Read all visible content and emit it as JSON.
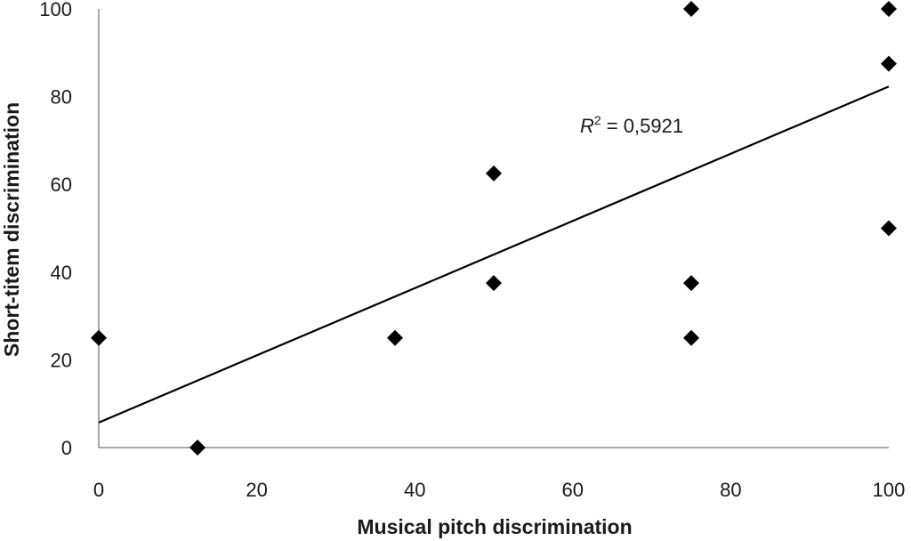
{
  "chart_data": {
    "type": "scatter",
    "title": "",
    "xlabel": "Musical pitch discrimination",
    "ylabel": "Short-titem discrimination",
    "xlim": [
      0,
      100
    ],
    "ylim": [
      0,
      100
    ],
    "x_ticks": [
      "0",
      "20",
      "40",
      "60",
      "80",
      "100"
    ],
    "y_ticks": [
      "0",
      "20",
      "40",
      "60",
      "80",
      "100"
    ],
    "grid": false,
    "legend": "none",
    "marker": "diamond",
    "marker_color": "#000000",
    "points": [
      {
        "x": 0,
        "y": 25
      },
      {
        "x": 12.5,
        "y": 0
      },
      {
        "x": 37.5,
        "y": 25
      },
      {
        "x": 50,
        "y": 62.5
      },
      {
        "x": 50,
        "y": 37.5
      },
      {
        "x": 75,
        "y": 100
      },
      {
        "x": 75,
        "y": 37.5
      },
      {
        "x": 75,
        "y": 25
      },
      {
        "x": 100,
        "y": 100
      },
      {
        "x": 100,
        "y": 87.5
      },
      {
        "x": 100,
        "y": 50
      }
    ],
    "trendline": {
      "type": "linear",
      "start": {
        "x": 0,
        "y": 5.7
      },
      "end": {
        "x": 100,
        "y": 82.3
      },
      "r2_label": "R",
      "r2_superscript": "2",
      "r2_value_text": " = 0,5921"
    }
  }
}
